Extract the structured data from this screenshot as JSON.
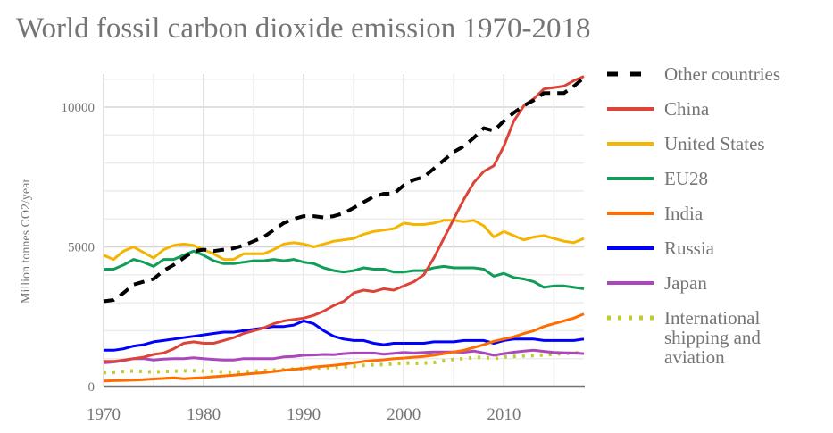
{
  "chart_data": {
    "type": "line",
    "title": "World fossil carbon dioxide emission 1970-2018",
    "xlabel": "",
    "ylabel": "Million tonnes CO2/year",
    "xlim": [
      1970,
      2018
    ],
    "ylim": [
      0,
      11200
    ],
    "x_ticks": [
      1970,
      1980,
      1990,
      2000,
      2010
    ],
    "x_tick_labels": [
      "1970",
      "1980",
      "1990",
      "2000",
      "2010"
    ],
    "y_ticks": [
      0,
      5000,
      10000
    ],
    "y_tick_labels": [
      "0",
      "5000",
      "10000"
    ],
    "grid": true,
    "legend_position": "right",
    "x": [
      1970,
      1971,
      1972,
      1973,
      1974,
      1975,
      1976,
      1977,
      1978,
      1979,
      1980,
      1981,
      1982,
      1983,
      1984,
      1985,
      1986,
      1987,
      1988,
      1989,
      1990,
      1991,
      1992,
      1993,
      1994,
      1995,
      1996,
      1997,
      1998,
      1999,
      2000,
      2001,
      2002,
      2003,
      2004,
      2005,
      2006,
      2007,
      2008,
      2009,
      2010,
      2011,
      2012,
      2013,
      2014,
      2015,
      2016,
      2017,
      2018
    ],
    "series": [
      {
        "name": "Other countries",
        "color": "#000000",
        "style": "dashed",
        "values": [
          3050,
          3100,
          3350,
          3650,
          3750,
          3850,
          4150,
          4350,
          4600,
          4850,
          4900,
          4850,
          4900,
          4950,
          5050,
          5200,
          5350,
          5600,
          5850,
          6000,
          6100,
          6100,
          6050,
          6100,
          6200,
          6400,
          6600,
          6800,
          6900,
          6900,
          7200,
          7400,
          7500,
          7800,
          8100,
          8400,
          8600,
          8900,
          9250,
          9150,
          9500,
          9800,
          10050,
          10250,
          10500,
          10500,
          10500,
          10750,
          11050
        ]
      },
      {
        "name": "China",
        "color": "#db4437",
        "style": "solid",
        "values": [
          900,
          900,
          950,
          1000,
          1050,
          1150,
          1200,
          1350,
          1550,
          1600,
          1550,
          1550,
          1650,
          1750,
          1900,
          2000,
          2100,
          2250,
          2350,
          2400,
          2450,
          2550,
          2700,
          2900,
          3050,
          3350,
          3450,
          3400,
          3500,
          3450,
          3600,
          3750,
          4000,
          4600,
          5300,
          6000,
          6700,
          7300,
          7700,
          7900,
          8600,
          9500,
          10050,
          10300,
          10650,
          10700,
          10750,
          10950,
          11100
        ]
      },
      {
        "name": "United States",
        "color": "#f4b400",
        "style": "solid",
        "values": [
          4700,
          4550,
          4850,
          5000,
          4800,
          4600,
          4900,
          5050,
          5100,
          5050,
          4900,
          4750,
          4550,
          4550,
          4750,
          4750,
          4750,
          4900,
          5100,
          5150,
          5100,
          5000,
          5100,
          5200,
          5250,
          5300,
          5450,
          5550,
          5600,
          5650,
          5850,
          5800,
          5800,
          5850,
          5950,
          5950,
          5900,
          5950,
          5750,
          5350,
          5550,
          5400,
          5250,
          5350,
          5400,
          5300,
          5200,
          5150,
          5300
        ]
      },
      {
        "name": "EU28",
        "color": "#0f9d58",
        "style": "solid",
        "values": [
          4200,
          4200,
          4350,
          4550,
          4450,
          4300,
          4550,
          4550,
          4700,
          4850,
          4700,
          4500,
          4400,
          4400,
          4450,
          4500,
          4500,
          4550,
          4500,
          4550,
          4450,
          4400,
          4250,
          4150,
          4100,
          4150,
          4250,
          4200,
          4200,
          4100,
          4100,
          4150,
          4150,
          4250,
          4300,
          4250,
          4250,
          4250,
          4200,
          3950,
          4050,
          3900,
          3850,
          3750,
          3550,
          3600,
          3600,
          3550,
          3500
        ]
      },
      {
        "name": "India",
        "color": "#ff6d00",
        "style": "solid",
        "values": [
          200,
          210,
          220,
          230,
          250,
          270,
          290,
          310,
          280,
          300,
          320,
          350,
          380,
          410,
          440,
          470,
          500,
          540,
          580,
          620,
          650,
          700,
          730,
          760,
          800,
          850,
          900,
          930,
          960,
          1000,
          1020,
          1050,
          1080,
          1120,
          1180,
          1240,
          1300,
          1400,
          1500,
          1620,
          1700,
          1780,
          1900,
          2000,
          2150,
          2250,
          2350,
          2450,
          2600
        ]
      },
      {
        "name": "Russia",
        "color": "#0000ff",
        "style": "solid",
        "values": [
          1300,
          1300,
          1350,
          1450,
          1500,
          1600,
          1650,
          1700,
          1750,
          1800,
          1850,
          1900,
          1950,
          1950,
          2000,
          2050,
          2100,
          2150,
          2150,
          2200,
          2350,
          2250,
          2000,
          1800,
          1700,
          1650,
          1650,
          1550,
          1500,
          1550,
          1550,
          1550,
          1550,
          1600,
          1600,
          1600,
          1650,
          1650,
          1650,
          1550,
          1650,
          1700,
          1700,
          1700,
          1650,
          1650,
          1650,
          1650,
          1700
        ]
      },
      {
        "name": "Japan",
        "color": "#ab47bc",
        "style": "solid",
        "values": [
          850,
          880,
          930,
          1000,
          1000,
          950,
          980,
          1000,
          1000,
          1030,
          1000,
          970,
          950,
          950,
          1000,
          1000,
          1000,
          1000,
          1060,
          1080,
          1120,
          1130,
          1150,
          1140,
          1180,
          1200,
          1200,
          1200,
          1160,
          1190,
          1220,
          1200,
          1220,
          1240,
          1240,
          1240,
          1230,
          1270,
          1200,
          1120,
          1180,
          1230,
          1270,
          1300,
          1260,
          1220,
          1210,
          1200,
          1180
        ]
      },
      {
        "name": "International shipping and aviation",
        "color": "#c0ca33",
        "style": "dotted",
        "values": [
          500,
          510,
          540,
          560,
          540,
          520,
          540,
          550,
          560,
          570,
          560,
          540,
          520,
          510,
          530,
          550,
          570,
          590,
          610,
          630,
          650,
          660,
          670,
          680,
          710,
          730,
          760,
          780,
          790,
          810,
          850,
          830,
          840,
          860,
          920,
          970,
          1000,
          1040,
          1050,
          1000,
          1060,
          1080,
          1100,
          1110,
          1130,
          1160,
          1180,
          1200,
          1230
        ]
      }
    ]
  }
}
